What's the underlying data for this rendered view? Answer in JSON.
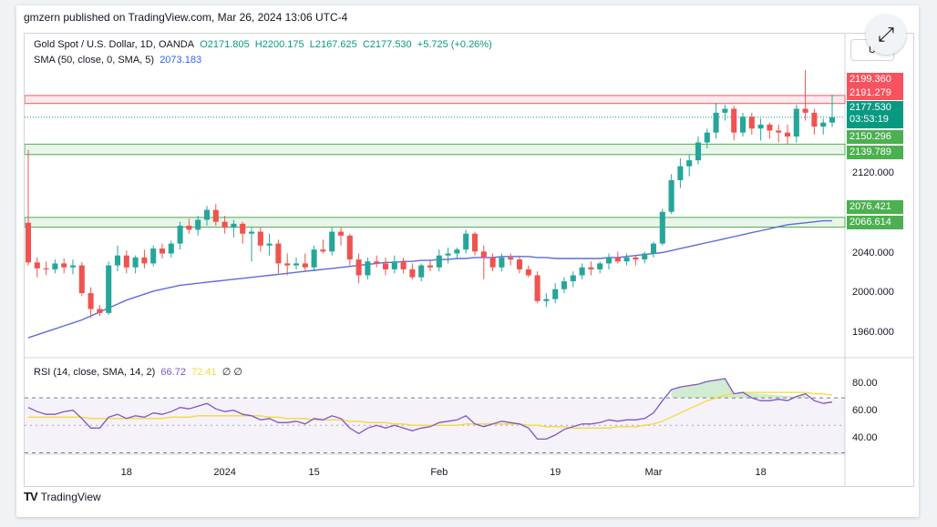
{
  "header": {
    "published": "gmzern published on TradingView.com, Mar 26, 2024 13:06 UTC-4"
  },
  "legend": {
    "symbol": "Gold Spot / U.S. Dollar, 1D, OANDA",
    "o": "O2171.805",
    "h": "H2200.175",
    "l": "L2167.625",
    "c": "C2177.530",
    "change": "+5.725 (+0.26%)",
    "sma_label": "SMA (50, close, 0, SMA, 5)",
    "sma_value": "2073.183"
  },
  "rsi_legend": {
    "label": "RSI (14, close, SMA, 14, 2)",
    "rsi": "66.72",
    "rsi_ma": "72.41",
    "extra": "∅ ∅"
  },
  "scale_button": "U",
  "footer": {
    "brand": "TradingView"
  },
  "colors": {
    "up": "#26a69a",
    "down": "#ef5350",
    "sma": "#5b6cdb",
    "rsi": "#7e57c2",
    "rsi_ma": "#f5d83a",
    "resist": "#f7525f",
    "support": "#4caf50"
  },
  "price_labels": {
    "p1": "2199.360",
    "p2": "2191.279",
    "p3": "2177.530",
    "p3_timer": "03:53:19",
    "p4": "2150.296",
    "p5": "2139.789",
    "p6": "2076.421",
    "p7": "2066.614"
  },
  "chart_data": {
    "type": "candlestick",
    "y_ticks": [
      "2120.000",
      "2040.000",
      "2000.000",
      "1960.000"
    ],
    "rsi_ticks": [
      "80.00",
      "60.00",
      "40.00"
    ],
    "x_ticks": [
      "18",
      "2024",
      "15",
      "Feb",
      "19",
      "Mar",
      "18"
    ],
    "ylim": [
      1945,
      2225
    ],
    "rsi_ylim": [
      25,
      90
    ],
    "zones": [
      {
        "kind": "resistance",
        "from": 2191.279,
        "to": 2199.36
      },
      {
        "kind": "support",
        "from": 2139.789,
        "to": 2150.296
      },
      {
        "kind": "support",
        "from": 2066.614,
        "to": 2076.421
      }
    ],
    "candles": [
      [
        2071.0,
        2144.5,
        2028.0,
        2031.0
      ],
      [
        2031.0,
        2036.0,
        2016.0,
        2025.0
      ],
      [
        2025.0,
        2032.0,
        2018.0,
        2024.0
      ],
      [
        2024.0,
        2034.0,
        2020.0,
        2030.0
      ],
      [
        2030.0,
        2035.0,
        2020.0,
        2026.0
      ],
      [
        2026.0,
        2034.0,
        2019.0,
        2028.0
      ],
      [
        2028.0,
        2031.0,
        1997.0,
        2000.0
      ],
      [
        2000.0,
        2006.0,
        1975.0,
        1984.0
      ],
      [
        1984.0,
        1988.0,
        1977.0,
        1980.0
      ],
      [
        1980.0,
        2032.0,
        1978.0,
        2028.0
      ],
      [
        2028.0,
        2048.0,
        2022.0,
        2038.0
      ],
      [
        2038.0,
        2043.0,
        2020.0,
        2026.0
      ],
      [
        2026.0,
        2038.0,
        2020.0,
        2036.0
      ],
      [
        2036.0,
        2044.0,
        2025.0,
        2030.0
      ],
      [
        2030.0,
        2048.0,
        2027.0,
        2045.0
      ],
      [
        2045.0,
        2050.0,
        2035.0,
        2040.0
      ],
      [
        2040.0,
        2053.0,
        2036.0,
        2050.0
      ],
      [
        2050.0,
        2072.0,
        2044.0,
        2068.0
      ],
      [
        2068.0,
        2075.0,
        2060.0,
        2064.0
      ],
      [
        2064.0,
        2078.0,
        2058.0,
        2074.0
      ],
      [
        2074.0,
        2088.0,
        2068.0,
        2084.0
      ],
      [
        2084.0,
        2090.0,
        2068.0,
        2072.0
      ],
      [
        2072.0,
        2078.0,
        2060.0,
        2066.0
      ],
      [
        2066.0,
        2074.0,
        2056.0,
        2070.0
      ],
      [
        2070.0,
        2072.0,
        2050.0,
        2060.0
      ],
      [
        2060.0,
        2066.0,
        2032.0,
        2062.0
      ],
      [
        2062.0,
        2066.0,
        2042.0,
        2048.0
      ],
      [
        2048.0,
        2060.0,
        2038.0,
        2050.0
      ],
      [
        2050.0,
        2054.0,
        2020.0,
        2030.0
      ],
      [
        2030.0,
        2040.0,
        2018.0,
        2028.0
      ],
      [
        2028.0,
        2036.0,
        2024.0,
        2030.0
      ],
      [
        2030.0,
        2040.0,
        2022.0,
        2026.0
      ],
      [
        2026.0,
        2048.0,
        2022.0,
        2044.0
      ],
      [
        2044.0,
        2054.0,
        2040.0,
        2042.0
      ],
      [
        2042.0,
        2066.0,
        2038.0,
        2062.0
      ],
      [
        2062.0,
        2066.0,
        2048.0,
        2058.0
      ],
      [
        2058.0,
        2060.0,
        2028.0,
        2034.0
      ],
      [
        2034.0,
        2040.0,
        2010.0,
        2018.0
      ],
      [
        2018.0,
        2036.0,
        2014.0,
        2032.0
      ],
      [
        2032.0,
        2038.0,
        2026.0,
        2030.0
      ],
      [
        2030.0,
        2036.0,
        2018.0,
        2024.0
      ],
      [
        2024.0,
        2038.0,
        2020.0,
        2032.0
      ],
      [
        2032.0,
        2036.0,
        2020.0,
        2024.0
      ],
      [
        2024.0,
        2030.0,
        2014.0,
        2016.0
      ],
      [
        2016.0,
        2030.0,
        2012.0,
        2028.0
      ],
      [
        2028.0,
        2034.0,
        2022.0,
        2026.0
      ],
      [
        2026.0,
        2044.0,
        2022.0,
        2038.0
      ],
      [
        2038.0,
        2046.0,
        2030.0,
        2040.0
      ],
      [
        2040.0,
        2046.0,
        2034.0,
        2044.0
      ],
      [
        2044.0,
        2064.0,
        2040.0,
        2060.0
      ],
      [
        2060.0,
        2062.0,
        2038.0,
        2042.0
      ],
      [
        2042.0,
        2048.0,
        2014.0,
        2036.0
      ],
      [
        2036.0,
        2040.0,
        2022.0,
        2026.0
      ],
      [
        2026.0,
        2040.0,
        2022.0,
        2036.0
      ],
      [
        2036.0,
        2040.0,
        2028.0,
        2034.0
      ],
      [
        2034.0,
        2038.0,
        2020.0,
        2024.0
      ],
      [
        2024.0,
        2028.0,
        2016.0,
        2018.0
      ],
      [
        2018.0,
        2022.0,
        1990.0,
        1992.0
      ],
      [
        1992.0,
        2000.0,
        1986.0,
        1994.0
      ],
      [
        1994.0,
        2010.0,
        1990.0,
        2004.0
      ],
      [
        2004.0,
        2016.0,
        2000.0,
        2012.0
      ],
      [
        2012.0,
        2022.0,
        2006.0,
        2018.0
      ],
      [
        2018.0,
        2030.0,
        2014.0,
        2026.0
      ],
      [
        2026.0,
        2032.0,
        2018.0,
        2024.0
      ],
      [
        2024.0,
        2032.0,
        2020.0,
        2030.0
      ],
      [
        2030.0,
        2040.0,
        2024.0,
        2036.0
      ],
      [
        2036.0,
        2042.0,
        2030.0,
        2032.0
      ],
      [
        2032.0,
        2040.0,
        2028.0,
        2036.0
      ],
      [
        2036.0,
        2038.0,
        2028.0,
        2034.0
      ],
      [
        2034.0,
        2042.0,
        2030.0,
        2040.0
      ],
      [
        2040.0,
        2052.0,
        2036.0,
        2050.0
      ],
      [
        2050.0,
        2085.0,
        2048.0,
        2082.0
      ],
      [
        2082.0,
        2120.0,
        2080.0,
        2114.0
      ],
      [
        2114.0,
        2136.0,
        2106.0,
        2128.0
      ],
      [
        2128.0,
        2140.0,
        2118.0,
        2134.0
      ],
      [
        2134.0,
        2158.0,
        2130.0,
        2152.0
      ],
      [
        2152.0,
        2166.0,
        2146.0,
        2162.0
      ],
      [
        2162.0,
        2192.0,
        2156.0,
        2182.0
      ],
      [
        2182.0,
        2190.0,
        2174.0,
        2186.0
      ],
      [
        2186.0,
        2189.0,
        2154.0,
        2162.0
      ],
      [
        2162.0,
        2182.0,
        2158.0,
        2178.0
      ],
      [
        2178.0,
        2182.0,
        2160.0,
        2166.0
      ],
      [
        2166.0,
        2176.0,
        2154.0,
        2170.0
      ],
      [
        2170.0,
        2172.0,
        2156.0,
        2164.0
      ],
      [
        2164.0,
        2170.0,
        2152.0,
        2162.0
      ],
      [
        2162.0,
        2170.0,
        2150.0,
        2158.0
      ],
      [
        2158.0,
        2190.0,
        2152.0,
        2186.0
      ],
      [
        2186.0,
        2225.0,
        2174.0,
        2182.0
      ],
      [
        2182.0,
        2186.0,
        2160.0,
        2168.0
      ],
      [
        2168.0,
        2176.0,
        2160.0,
        2172.0
      ],
      [
        2172.0,
        2200.2,
        2167.6,
        2177.5
      ]
    ],
    "sma": [
      1955,
      1958,
      1961,
      1964,
      1967,
      1970,
      1973,
      1977,
      1981,
      1985,
      1989,
      1993,
      1996,
      1999,
      2002,
      2004,
      2006,
      2008,
      2009,
      2010,
      2011,
      2012,
      2013,
      2014,
      2015,
      2016,
      2017,
      2018,
      2019,
      2020,
      2021,
      2022,
      2023,
      2024,
      2025,
      2026,
      2027,
      2028,
      2029,
      2030,
      2031,
      2031,
      2032,
      2032,
      2033,
      2033,
      2034,
      2034,
      2035,
      2035,
      2036,
      2036,
      2036,
      2037,
      2037,
      2037,
      2037,
      2036,
      2036,
      2035,
      2035,
      2035,
      2035,
      2035,
      2035,
      2036,
      2036,
      2037,
      2038,
      2039,
      2040,
      2041,
      2043,
      2045,
      2047,
      2049,
      2051,
      2053,
      2055,
      2057,
      2059,
      2061,
      2063,
      2065,
      2067,
      2069,
      2070,
      2071,
      2072,
      2073,
      2073
    ],
    "rsi": [
      63,
      60,
      58,
      58,
      60,
      61,
      55,
      48,
      48,
      56,
      58,
      55,
      57,
      56,
      59,
      58,
      60,
      63,
      62,
      64,
      66,
      62,
      60,
      61,
      58,
      57,
      54,
      55,
      52,
      52,
      53,
      51,
      55,
      54,
      57,
      55,
      48,
      44,
      48,
      50,
      48,
      50,
      48,
      46,
      48,
      49,
      52,
      53,
      54,
      57,
      51,
      49,
      51,
      53,
      52,
      51,
      48,
      40,
      40,
      43,
      47,
      49,
      51,
      51,
      52,
      54,
      53,
      54,
      54,
      55,
      59,
      68,
      76,
      78,
      79,
      80,
      82,
      83,
      84,
      73,
      74,
      70,
      68,
      68,
      69,
      68,
      71,
      73,
      68,
      66,
      67
    ],
    "rsi_ma": [
      56,
      56,
      56,
      56,
      56,
      56,
      56,
      55,
      55,
      55,
      55,
      55,
      55,
      55,
      55,
      55,
      56,
      56,
      56,
      57,
      57,
      57,
      57,
      57,
      57,
      57,
      57,
      56,
      56,
      55,
      55,
      55,
      54,
      54,
      54,
      54,
      53,
      53,
      52,
      52,
      52,
      51,
      51,
      50,
      50,
      50,
      50,
      50,
      50,
      51,
      51,
      51,
      51,
      51,
      51,
      51,
      50,
      50,
      49,
      49,
      49,
      48,
      48,
      48,
      48,
      48,
      49,
      49,
      49,
      50,
      51,
      53,
      56,
      59,
      62,
      65,
      68,
      70,
      72,
      73,
      74,
      74,
      74,
      74,
      74,
      74,
      74,
      74,
      73,
      73,
      72
    ]
  }
}
